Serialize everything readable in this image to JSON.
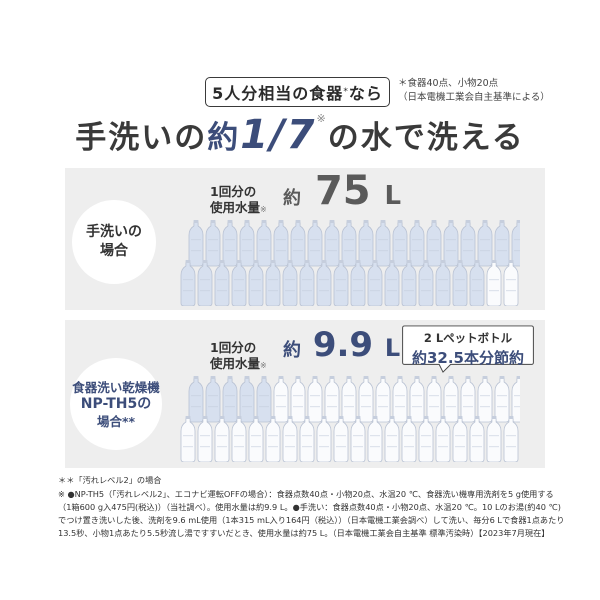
{
  "header": {
    "badge_main": "5人分相当の食器",
    "badge_mark": "*",
    "badge_suffix": "なら",
    "note_line1": "＊食器40点、小物20点",
    "note_line2": "（日本電機工業会自主基準による）"
  },
  "headline": {
    "pre": "手洗いの",
    "approx": "約",
    "fraction": "1/7",
    "mark": "※",
    "post": "の水で洗える"
  },
  "hand_wash": {
    "label_line1": "手洗いの",
    "label_line2": "場合",
    "usage_line1": "1回分の",
    "usage_line2": "使用水量",
    "usage_mark": "※",
    "approx": "約",
    "value": "75",
    "unit": "L",
    "bottles_used": 37.5,
    "bottle_color": "#d7e0ef"
  },
  "dishwasher": {
    "label_line1": "食器洗い乾燥機",
    "label_line2": "NP-TH5の",
    "label_line3": "場合**",
    "usage_line1": "1回分の",
    "usage_line2": "使用水量",
    "usage_mark": "※",
    "approx": "約",
    "value": "9.9",
    "unit": "L",
    "bottles_used": 5,
    "bottle_color": "#d7e0ef",
    "saving_line1": "2 Lペットボトル",
    "saving_line2": "約32.5本分節約"
  },
  "footnotes": [
    "＊＊「汚れレベル2」の場合",
    "※ ●NP-TH5（「汚れレベル2」、エコナビ運転OFFの場合）：食器点数40点・小物20点、水温20 ℃、食器洗い機専用洗剤を5 g使用する",
    "（1箱600 g入475円(税込)）（当社調べ）。使用水量は約9.9 L。●手洗い：食器点数40点・小物20点、水温20 ℃。10 Lのお湯(約40 ℃)",
    "でつけ置き洗いした後、洗剤を9.6 mL使用（1本315 mL入り164円（税込））（日本電機工業会調べ）して洗い、毎分6 Lで食器1点あたり",
    "13.5秒、小物1点あたり5.5秒流し湯ですすいだとき、使用水量は約75 L。（日本電機工業会自主基準 標準汚染時）【2023年7月現在】"
  ]
}
